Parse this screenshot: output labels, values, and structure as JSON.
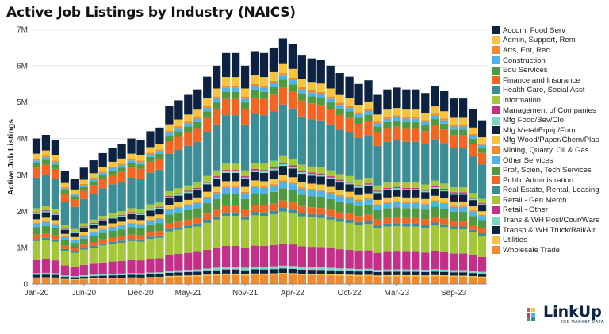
{
  "chart_data": {
    "type": "bar",
    "stacked": true,
    "title": "Active Job Listings by Industry (NAICS)",
    "ylabel": "Active Job Listings",
    "xlabel": "",
    "ylim": [
      0,
      7000000
    ],
    "yticks": [
      0,
      1000000,
      2000000,
      3000000,
      4000000,
      5000000,
      6000000,
      7000000
    ],
    "ytick_labels": [
      "0",
      "1M",
      "2M",
      "3M",
      "4M",
      "5M",
      "6M",
      "7M"
    ],
    "xtick_labels": [
      "Jan-20",
      "Jun-20",
      "Dec-20",
      "May-21",
      "Nov-21",
      "Apr-22",
      "Oct-22",
      "Mar-23",
      "Sep-23"
    ],
    "xtick_indices": [
      0,
      5,
      11,
      16,
      22,
      27,
      33,
      38,
      44
    ],
    "grid": true,
    "legend_position": "right",
    "categories": [
      "Jan-20",
      "Feb-20",
      "Mar-20",
      "Apr-20",
      "May-20",
      "Jun-20",
      "Jul-20",
      "Aug-20",
      "Sep-20",
      "Oct-20",
      "Nov-20",
      "Dec-20",
      "Jan-21",
      "Feb-21",
      "Mar-21",
      "Apr-21",
      "May-21",
      "Jun-21",
      "Jul-21",
      "Aug-21",
      "Sep-21",
      "Oct-21",
      "Nov-21",
      "Dec-21",
      "Jan-22",
      "Feb-22",
      "Mar-22",
      "Apr-22",
      "May-22",
      "Jun-22",
      "Jul-22",
      "Aug-22",
      "Sep-22",
      "Oct-22",
      "Nov-22",
      "Dec-22",
      "Jan-23",
      "Feb-23",
      "Mar-23",
      "Apr-23",
      "May-23",
      "Jun-23",
      "Jul-23",
      "Aug-23",
      "Sep-23",
      "Oct-23",
      "Nov-23",
      "Dec-23"
    ],
    "totals": [
      4000000,
      4100000,
      3950000,
      3100000,
      2900000,
      3200000,
      3400000,
      3600000,
      3750000,
      3850000,
      4000000,
      3950000,
      4200000,
      4300000,
      4900000,
      5050000,
      5200000,
      5350000,
      5700000,
      6000000,
      6350000,
      6350000,
      6000000,
      6400000,
      6350000,
      6500000,
      6750000,
      6600000,
      6300000,
      6200000,
      6150000,
      6000000,
      5800000,
      5700000,
      5500000,
      5600000,
      5200000,
      5350000,
      5400000,
      5350000,
      5350000,
      5250000,
      5450000,
      5300000,
      5100000,
      5100000,
      4800000,
      4500000
    ],
    "series": [
      {
        "name": "Accom, Food Serv",
        "color": "#0d2240",
        "share": 0.104
      },
      {
        "name": "Admin, Support, Rem",
        "color": "#f7c23c",
        "share": 0.037
      },
      {
        "name": "Arts, Ent, Rec",
        "color": "#f08a2c",
        "share": 0.01
      },
      {
        "name": "Construction",
        "color": "#4eb3e8",
        "share": 0.017
      },
      {
        "name": "Edu Services",
        "color": "#4f9a3e",
        "share": 0.031
      },
      {
        "name": "Finance and Insurance",
        "color": "#f26522",
        "share": 0.07
      },
      {
        "name": "Health Care, Social Asst",
        "color": "#3b8d96",
        "share": 0.21
      },
      {
        "name": "Information",
        "color": "#a4c639",
        "share": 0.027
      },
      {
        "name": "Management of Companies",
        "color": "#c42f8a",
        "share": 0.006
      },
      {
        "name": "Mfg Food/Bev/Clo",
        "color": "#7ed6c2",
        "share": 0.007
      },
      {
        "name": "Mfg Metal/Equip/Furn",
        "color": "#0d2240",
        "share": 0.036
      },
      {
        "name": "Mfg Wood/Paper/Chem/Plas",
        "color": "#f7c23c",
        "share": 0.023
      },
      {
        "name": "Mining, Quarry, Oil & Gas",
        "color": "#f08a2c",
        "share": 0.006
      },
      {
        "name": "Other Services",
        "color": "#4eb3e8",
        "share": 0.026
      },
      {
        "name": "Prof, Scien, Tech Services",
        "color": "#4f9a3e",
        "share": 0.05
      },
      {
        "name": "Public Administration",
        "color": "#f26522",
        "share": 0.03
      },
      {
        "name": "Real Estate, Rental, Leasing",
        "color": "#3b8d96",
        "share": 0.015
      },
      {
        "name": "Retail - Gen Merch",
        "color": "#a4c639",
        "share": 0.13
      },
      {
        "name": "Retail - Other",
        "color": "#c42f8a",
        "share": 0.09
      },
      {
        "name": "Trans & WH Post/Cour/Ware",
        "color": "#7ed6c2",
        "share": 0.012
      },
      {
        "name": "Transp & WH Truck/Rail/Air",
        "color": "#0d2240",
        "share": 0.018
      },
      {
        "name": "Utilities",
        "color": "#f7c23c",
        "share": 0.006
      },
      {
        "name": "Wholesale Trade",
        "color": "#f08a2c",
        "share": 0.039
      }
    ]
  },
  "logo": {
    "name": "LinkUp",
    "tagline": "JOB MARKET DATA"
  }
}
